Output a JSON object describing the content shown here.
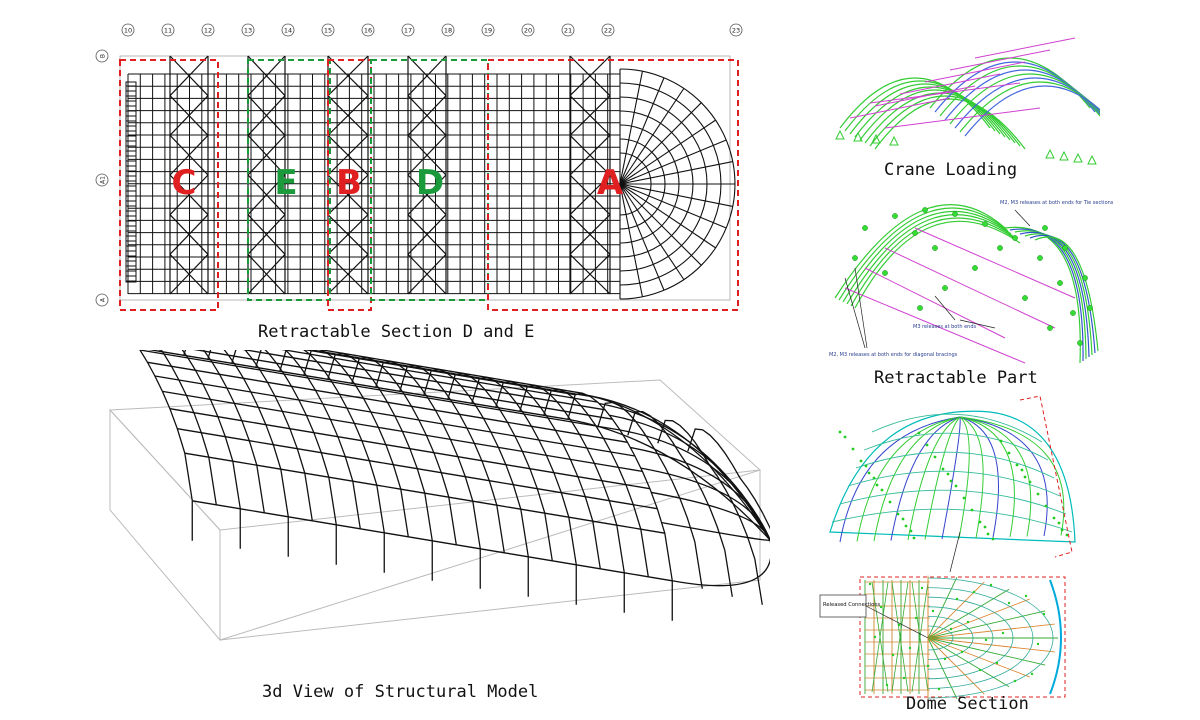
{
  "plan": {
    "caption": "Retractable Section D and E",
    "grid_columns": [
      "10",
      "11",
      "12",
      "13",
      "14",
      "15",
      "16",
      "17",
      "18",
      "19",
      "20",
      "21",
      "22",
      "23"
    ],
    "grid_rows": [
      "B",
      "A1",
      "A"
    ],
    "sections": [
      {
        "label": "C",
        "color": "#e02020"
      },
      {
        "label": "E",
        "color": "#1a9a3a"
      },
      {
        "label": "B",
        "color": "#e02020"
      },
      {
        "label": "D",
        "color": "#1a9a3a"
      },
      {
        "label": "A",
        "color": "#e02020"
      }
    ]
  },
  "view3d": {
    "caption": "3d View of Structural Model"
  },
  "crane": {
    "caption": "Crane Loading"
  },
  "retractable": {
    "caption": "Retractable Part",
    "notes": [
      "M2, M3 releases at both ends for Tie sections",
      "M3 releases at both ends",
      "M2, M3 releases at both ends for diagonal bracings"
    ]
  },
  "dome": {
    "caption": "Dome Section",
    "inset_label": "Released Connections"
  },
  "colors": {
    "red_section": "#e02020",
    "green_section": "#1a9a3a",
    "green_model": "#33cc33",
    "magenta_model": "#d040d0"
  }
}
